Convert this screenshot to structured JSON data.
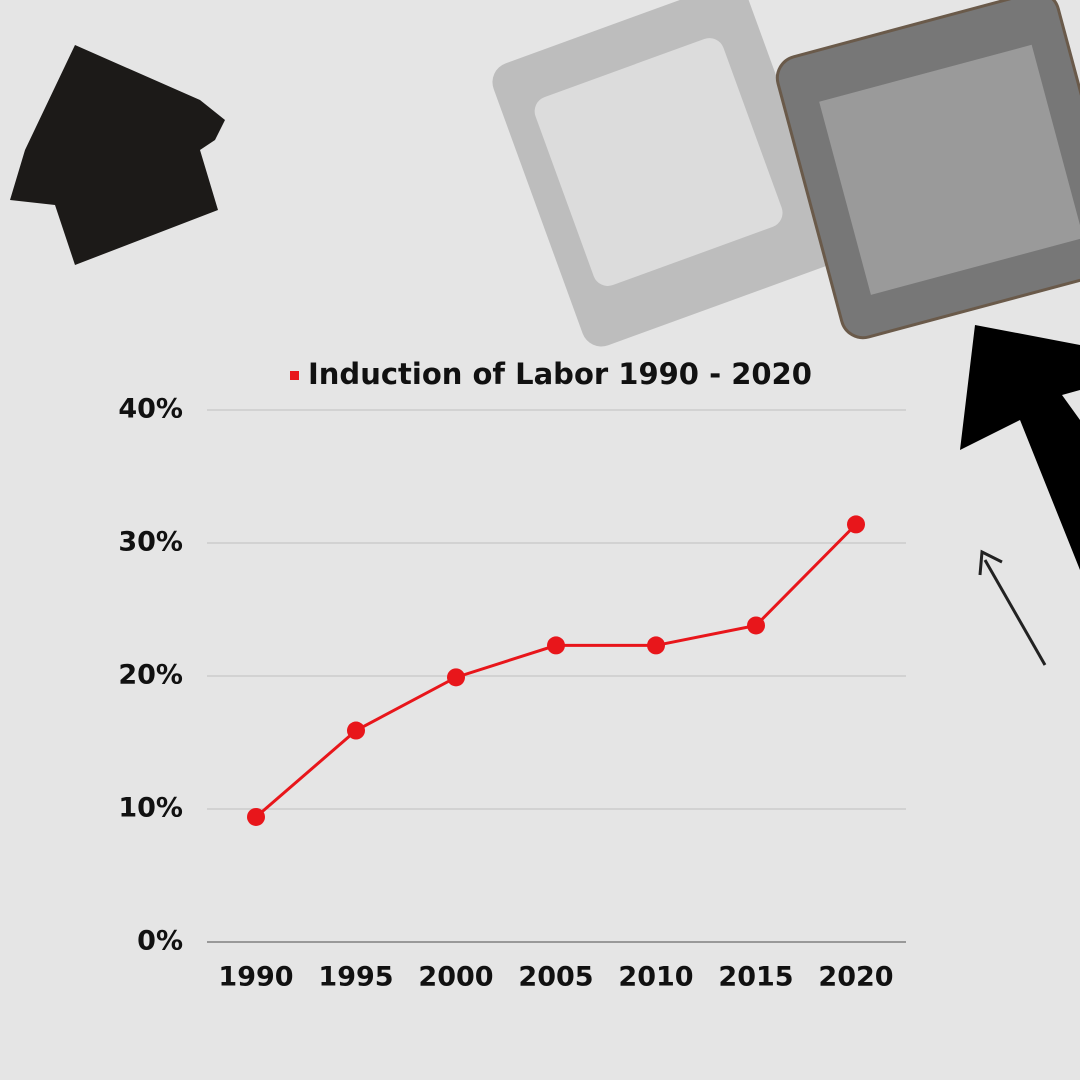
{
  "chart_data": {
    "type": "line",
    "categories": [
      "1990",
      "1995",
      "2000",
      "2005",
      "2010",
      "2015",
      "2020"
    ],
    "series": [
      {
        "name": "Induction of Labor 1990 - 2020",
        "color": "#e8161b",
        "values": [
          9.4,
          15.9,
          19.9,
          22.3,
          22.3,
          23.8,
          31.4
        ]
      }
    ],
    "ylim": [
      0,
      40
    ],
    "yticks": [
      {
        "value": 0,
        "label": "0%"
      },
      {
        "value": 10,
        "label": "10%"
      },
      {
        "value": 20,
        "label": "20%"
      },
      {
        "value": 30,
        "label": "30%"
      },
      {
        "value": 40,
        "label": "40%"
      }
    ],
    "grid": true,
    "legend": "top"
  }
}
